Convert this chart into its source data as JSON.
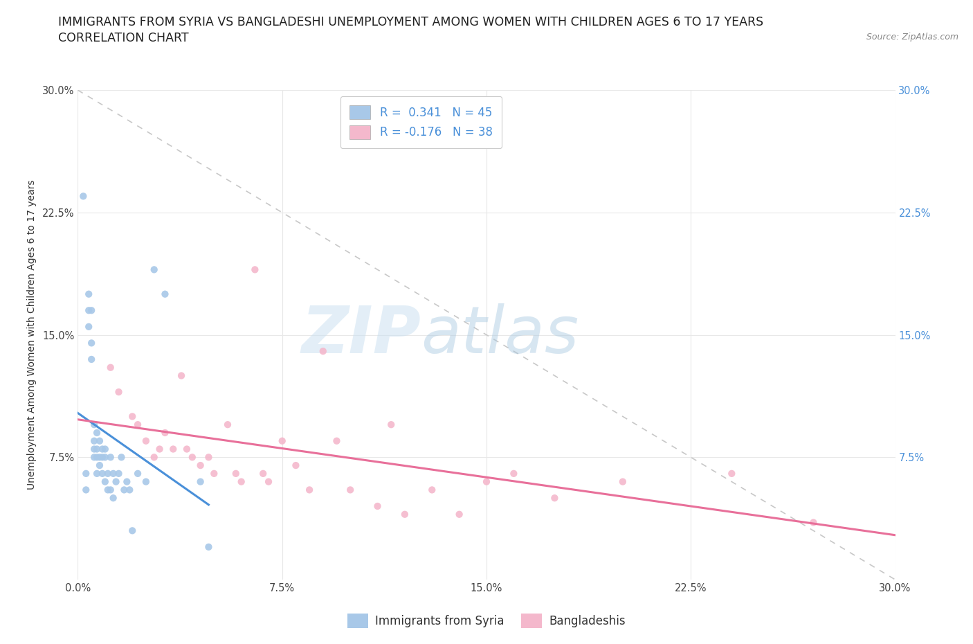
{
  "title_line1": "IMMIGRANTS FROM SYRIA VS BANGLADESHI UNEMPLOYMENT AMONG WOMEN WITH CHILDREN AGES 6 TO 17 YEARS",
  "title_line2": "CORRELATION CHART",
  "source_text": "Source: ZipAtlas.com",
  "ylabel": "Unemployment Among Women with Children Ages 6 to 17 years",
  "xlim": [
    0.0,
    0.3
  ],
  "ylim": [
    0.0,
    0.3
  ],
  "xticks": [
    0.0,
    0.075,
    0.15,
    0.225,
    0.3
  ],
  "yticks": [
    0.075,
    0.15,
    0.225,
    0.3
  ],
  "xticklabels": [
    "0.0%",
    "7.5%",
    "15.0%",
    "22.5%",
    "30.0%"
  ],
  "left_yticklabels": [
    "7.5%",
    "15.0%",
    "22.5%",
    "30.0%"
  ],
  "right_yticklabels": [
    "7.5%",
    "15.0%",
    "22.5%",
    "30.0%"
  ],
  "syria_color": "#a8c8e8",
  "bangladesh_color": "#f4b8cc",
  "syria_line_color": "#4a90d9",
  "bangladesh_line_color": "#e8709a",
  "trend_line_color": "#c8c8c8",
  "R_syria": 0.341,
  "N_syria": 45,
  "R_bangladesh": -0.176,
  "N_bangladesh": 38,
  "legend_label_syria": "Immigrants from Syria",
  "legend_label_bangladesh": "Bangladeshis",
  "watermark_zip": "ZIP",
  "watermark_atlas": "atlas",
  "syria_scatter_x": [
    0.002,
    0.003,
    0.003,
    0.004,
    0.004,
    0.004,
    0.005,
    0.005,
    0.005,
    0.006,
    0.006,
    0.006,
    0.006,
    0.007,
    0.007,
    0.007,
    0.007,
    0.008,
    0.008,
    0.008,
    0.009,
    0.009,
    0.009,
    0.01,
    0.01,
    0.01,
    0.011,
    0.011,
    0.012,
    0.012,
    0.013,
    0.013,
    0.014,
    0.015,
    0.016,
    0.017,
    0.018,
    0.019,
    0.02,
    0.022,
    0.025,
    0.028,
    0.032,
    0.045,
    0.048
  ],
  "syria_scatter_y": [
    0.235,
    0.065,
    0.055,
    0.175,
    0.165,
    0.155,
    0.165,
    0.145,
    0.135,
    0.095,
    0.085,
    0.08,
    0.075,
    0.09,
    0.08,
    0.075,
    0.065,
    0.085,
    0.075,
    0.07,
    0.08,
    0.075,
    0.065,
    0.08,
    0.075,
    0.06,
    0.065,
    0.055,
    0.075,
    0.055,
    0.065,
    0.05,
    0.06,
    0.065,
    0.075,
    0.055,
    0.06,
    0.055,
    0.03,
    0.065,
    0.06,
    0.19,
    0.175,
    0.06,
    0.02
  ],
  "bangladesh_scatter_x": [
    0.012,
    0.015,
    0.02,
    0.022,
    0.025,
    0.028,
    0.03,
    0.032,
    0.035,
    0.038,
    0.04,
    0.042,
    0.045,
    0.048,
    0.05,
    0.055,
    0.058,
    0.06,
    0.065,
    0.068,
    0.07,
    0.075,
    0.08,
    0.085,
    0.09,
    0.095,
    0.1,
    0.11,
    0.115,
    0.12,
    0.13,
    0.14,
    0.15,
    0.16,
    0.175,
    0.2,
    0.24,
    0.27
  ],
  "bangladesh_scatter_y": [
    0.13,
    0.115,
    0.1,
    0.095,
    0.085,
    0.075,
    0.08,
    0.09,
    0.08,
    0.125,
    0.08,
    0.075,
    0.07,
    0.075,
    0.065,
    0.095,
    0.065,
    0.06,
    0.19,
    0.065,
    0.06,
    0.085,
    0.07,
    0.055,
    0.14,
    0.085,
    0.055,
    0.045,
    0.095,
    0.04,
    0.055,
    0.04,
    0.06,
    0.065,
    0.05,
    0.06,
    0.065,
    0.035
  ],
  "background_color": "#ffffff",
  "grid_color": "#e8e8e8",
  "title_fontsize": 12.5,
  "axis_fontsize": 10,
  "tick_fontsize": 10.5,
  "legend_fontsize": 12
}
